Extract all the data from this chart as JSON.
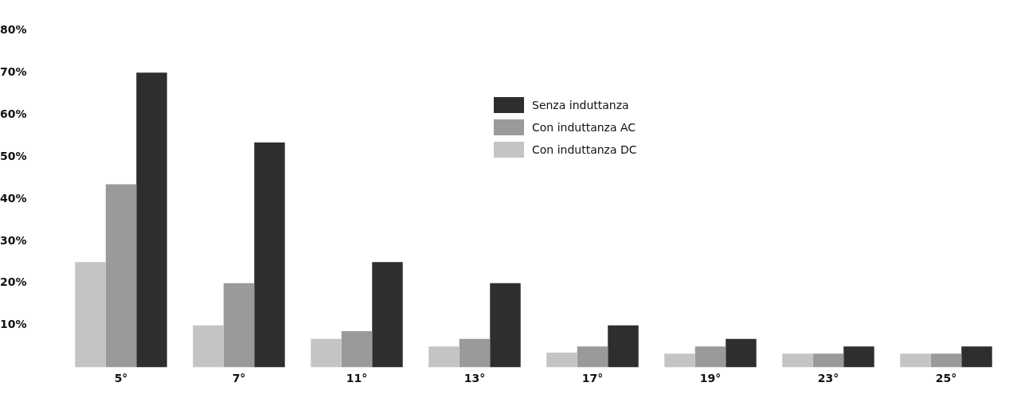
{
  "chart_data": {
    "type": "bar",
    "categories": [
      "5°",
      "7°",
      "11°",
      "13°",
      "17°",
      "19°",
      "23°",
      "25°"
    ],
    "series": [
      {
        "name": "Con induttanza DC",
        "color": "#c4c4c4",
        "values": [
          25,
          10,
          6.8,
          5,
          3.5,
          3.3,
          3.3,
          3.3
        ]
      },
      {
        "name": "Con induttanza AC",
        "color": "#9a9a9a",
        "values": [
          43.5,
          20,
          8.6,
          6.8,
          5,
          5,
          3.3,
          3.3
        ]
      },
      {
        "name": "Senza induttanza",
        "color": "#2e2e2e",
        "values": [
          70,
          53.4,
          25,
          20,
          10,
          6.8,
          5,
          5
        ]
      }
    ],
    "ylim": [
      0,
      80
    ],
    "yticks": [
      {
        "value": 10,
        "label": "10%"
      },
      {
        "value": 20,
        "label": "20%"
      },
      {
        "value": 30,
        "label": "30%"
      },
      {
        "value": 40,
        "label": "40%"
      },
      {
        "value": 50,
        "label": "50%"
      },
      {
        "value": 60,
        "label": "60%"
      },
      {
        "value": 70,
        "label": "70%"
      },
      {
        "value": 80,
        "label": "80%"
      }
    ],
    "grid": false,
    "legend": "top"
  }
}
